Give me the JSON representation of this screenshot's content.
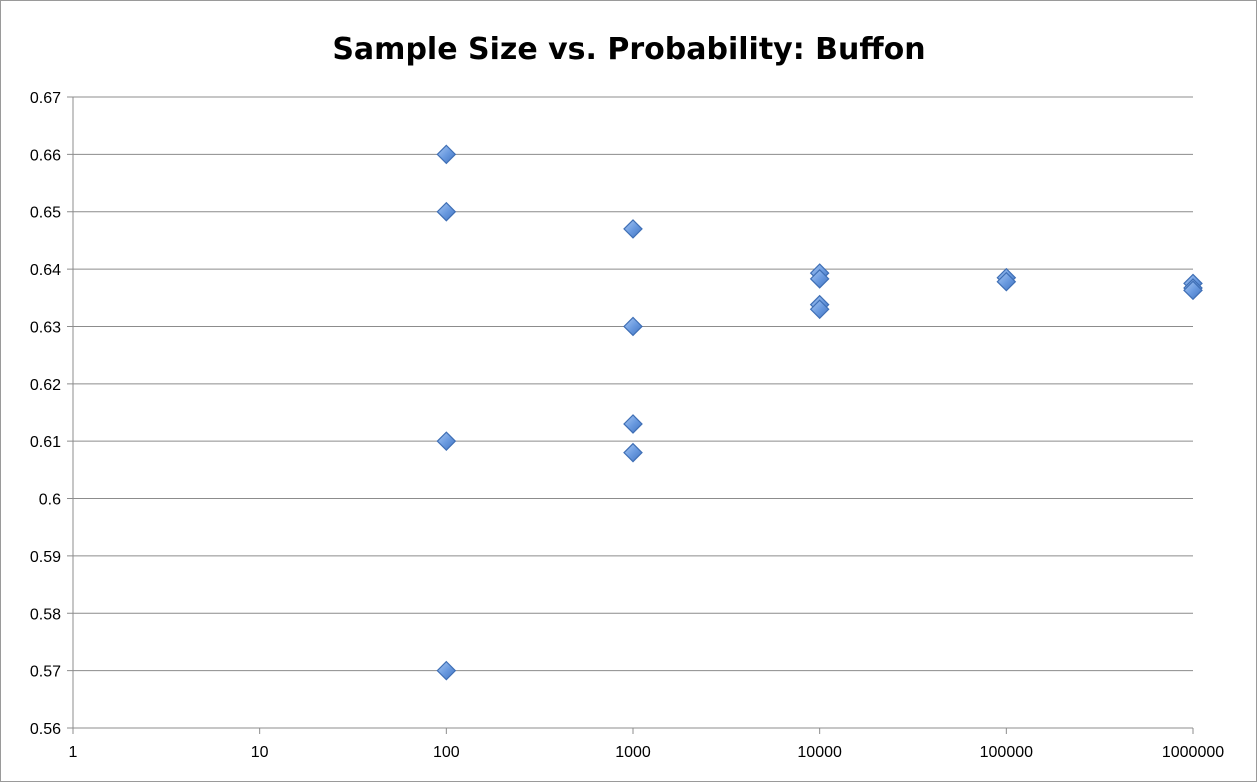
{
  "chart_data": {
    "type": "scatter",
    "title": "Sample Size vs. Probability: Buffon",
    "xlabel": "",
    "ylabel": "",
    "x_scale": "log",
    "xlim": [
      1,
      1000000
    ],
    "ylim": [
      0.56,
      0.67
    ],
    "x_ticks": [
      {
        "value": 1,
        "label": "1"
      },
      {
        "value": 10,
        "label": "10"
      },
      {
        "value": 100,
        "label": "100"
      },
      {
        "value": 1000,
        "label": "1000"
      },
      {
        "value": 10000,
        "label": "10000"
      },
      {
        "value": 100000,
        "label": "100000"
      },
      {
        "value": 1000000,
        "label": "1000000"
      }
    ],
    "y_ticks": [
      {
        "value": 0.56,
        "label": "0.56"
      },
      {
        "value": 0.57,
        "label": "0.57"
      },
      {
        "value": 0.58,
        "label": "0.58"
      },
      {
        "value": 0.59,
        "label": "0.59"
      },
      {
        "value": 0.6,
        "label": "0.6"
      },
      {
        "value": 0.61,
        "label": "0.61"
      },
      {
        "value": 0.62,
        "label": "0.62"
      },
      {
        "value": 0.63,
        "label": "0.63"
      },
      {
        "value": 0.64,
        "label": "0.64"
      },
      {
        "value": 0.65,
        "label": "0.65"
      },
      {
        "value": 0.66,
        "label": "0.66"
      },
      {
        "value": 0.67,
        "label": "0.67"
      }
    ],
    "grid": "horizontal",
    "legend": "none",
    "marker": "diamond",
    "marker_color": "#5b8fd9",
    "marker_edge_color": "#3f6fb5",
    "series": [
      {
        "points": [
          {
            "x": 100,
            "y": 0.66
          },
          {
            "x": 100,
            "y": 0.65
          },
          {
            "x": 100,
            "y": 0.61
          },
          {
            "x": 100,
            "y": 0.57
          },
          {
            "x": 1000,
            "y": 0.647
          },
          {
            "x": 1000,
            "y": 0.63
          },
          {
            "x": 1000,
            "y": 0.613
          },
          {
            "x": 1000,
            "y": 0.608
          },
          {
            "x": 10000,
            "y": 0.6393
          },
          {
            "x": 10000,
            "y": 0.6383
          },
          {
            "x": 10000,
            "y": 0.6338
          },
          {
            "x": 10000,
            "y": 0.633
          },
          {
            "x": 100000,
            "y": 0.6385
          },
          {
            "x": 100000,
            "y": 0.6378
          },
          {
            "x": 1000000,
            "y": 0.6375
          },
          {
            "x": 1000000,
            "y": 0.6367
          },
          {
            "x": 1000000,
            "y": 0.6363
          }
        ]
      }
    ]
  }
}
